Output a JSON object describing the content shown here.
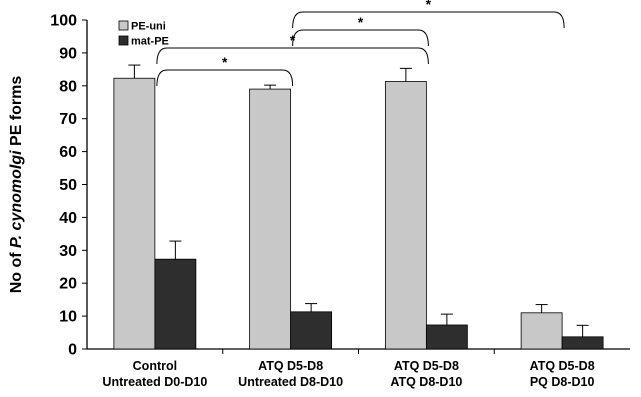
{
  "chart_data": {
    "type": "bar",
    "ylabel_prefix": "No of ",
    "ylabel_italic": "P. cynomolgi",
    "ylabel_suffix": " PE forms",
    "ylim": [
      0,
      100
    ],
    "yticks": [
      0,
      10,
      20,
      30,
      40,
      50,
      60,
      70,
      80,
      90,
      100
    ],
    "grid": false,
    "legend_position": "top-left",
    "categories": [
      [
        "Control",
        "Untreated D0-D10"
      ],
      [
        "ATQ D5-D8",
        "Untreated D8-D10"
      ],
      [
        "ATQ D5-D8",
        "ATQ D8-D10"
      ],
      [
        "ATQ D5-D8",
        "PQ D8-D10"
      ]
    ],
    "series": [
      {
        "name": "PE-uni",
        "color": "#c8c8c8",
        "values": [
          82.3,
          79.0,
          81.3,
          11.0
        ],
        "errors": [
          4.0,
          1.2,
          4.0,
          2.5
        ]
      },
      {
        "name": "mat-PE",
        "color": "#2e2e2e",
        "values": [
          27.3,
          11.3,
          7.3,
          3.7
        ],
        "errors": [
          5.5,
          2.5,
          3.3,
          3.5
        ]
      }
    ],
    "significance": [
      {
        "from_category": 0,
        "to_category": 1,
        "label": "*"
      },
      {
        "from_category": 0,
        "to_category": 2,
        "label": "*"
      },
      {
        "from_category": 1,
        "to_category": 2,
        "label": "*"
      },
      {
        "from_category": 1,
        "to_category": 3,
        "label": "*"
      }
    ]
  }
}
